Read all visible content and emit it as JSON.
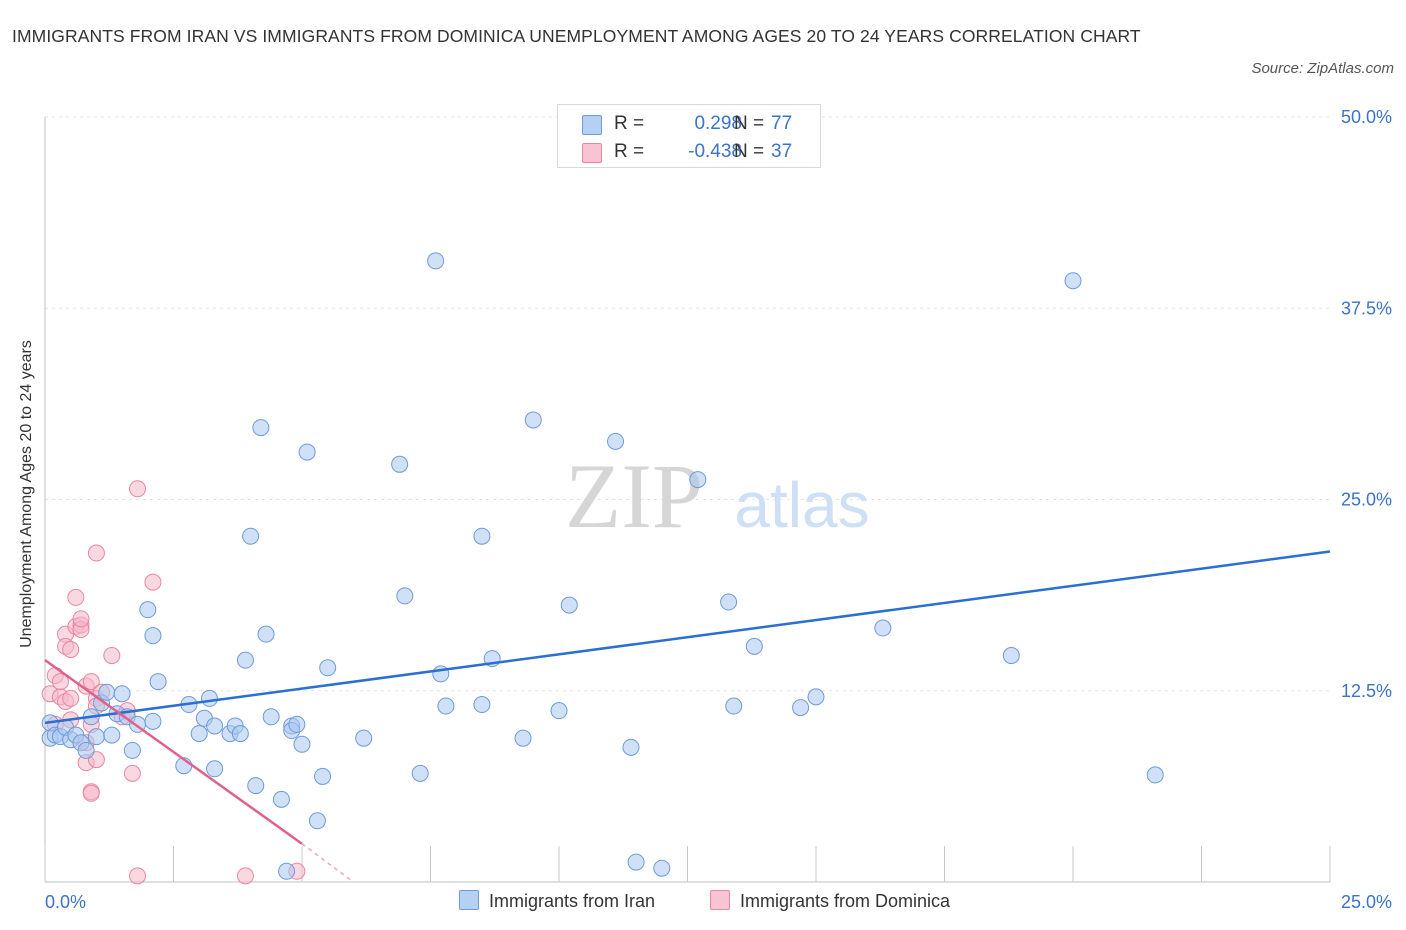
{
  "title": "IMMIGRANTS FROM IRAN VS IMMIGRANTS FROM DOMINICA UNEMPLOYMENT AMONG AGES 20 TO 24 YEARS CORRELATION CHART",
  "source": "Source: ZipAtlas.com",
  "watermark": {
    "zip": "ZIP",
    "atlas": "atlas"
  },
  "legend": {
    "r_label": "R =",
    "n_label": "N =",
    "rows": [
      {
        "r": "0.298",
        "n": "77"
      },
      {
        "r": "-0.438",
        "n": "37"
      }
    ]
  },
  "colors": {
    "iran_fill": "#a9c8f0",
    "iran_stroke": "#6d9bd8",
    "iran_line": "#2b6fcf",
    "dominica_fill": "#f5b8cb",
    "dominica_stroke": "#e9869f",
    "dominica_line": "#e0628c",
    "tick_text": "#3b73c8"
  },
  "chart_data": {
    "type": "scatter",
    "title": "IMMIGRANTS FROM IRAN VS IMMIGRANTS FROM DOMINICA UNEMPLOYMENT AMONG AGES 20 TO 24 YEARS CORRELATION CHART",
    "xlabel": "",
    "ylabel": "Unemployment Among Ages 20 to 24 years",
    "xlim": [
      0,
      25
    ],
    "ylim": [
      0,
      50
    ],
    "x_tick_labels": [
      "0.0%",
      "25.0%"
    ],
    "y_ticks": [
      12.5,
      25.0,
      37.5,
      50.0
    ],
    "y_tick_labels": [
      "12.5%",
      "25.0%",
      "37.5%",
      "50.0%"
    ],
    "grid": true,
    "legend_position": "top-center",
    "series": [
      {
        "name": "Immigrants from Iran",
        "R": 0.298,
        "N": 77,
        "trend": {
          "x": [
            0,
            25
          ],
          "y": [
            10.4,
            21.6
          ]
        },
        "points": [
          [
            0.1,
            9.4
          ],
          [
            0.1,
            10.4
          ],
          [
            0.2,
            9.6
          ],
          [
            0.3,
            9.5
          ],
          [
            0.4,
            10.1
          ],
          [
            0.5,
            9.3
          ],
          [
            0.6,
            9.6
          ],
          [
            0.7,
            9.1
          ],
          [
            0.8,
            8.6
          ],
          [
            0.9,
            10.8
          ],
          [
            1.0,
            9.5
          ],
          [
            1.1,
            11.7
          ],
          [
            1.2,
            12.4
          ],
          [
            1.3,
            9.6
          ],
          [
            1.4,
            11.0
          ],
          [
            1.5,
            12.3
          ],
          [
            1.6,
            10.8
          ],
          [
            1.7,
            8.6
          ],
          [
            1.8,
            10.3
          ],
          [
            2.1,
            10.5
          ],
          [
            2.0,
            17.8
          ],
          [
            2.1,
            16.1
          ],
          [
            2.2,
            13.1
          ],
          [
            2.7,
            7.6
          ],
          [
            2.8,
            11.6
          ],
          [
            3.0,
            9.7
          ],
          [
            3.1,
            10.7
          ],
          [
            3.2,
            12.0
          ],
          [
            3.3,
            10.2
          ],
          [
            3.3,
            7.4
          ],
          [
            3.6,
            9.7
          ],
          [
            3.7,
            10.2
          ],
          [
            3.8,
            9.7
          ],
          [
            3.9,
            14.5
          ],
          [
            4.0,
            22.6
          ],
          [
            4.1,
            6.3
          ],
          [
            4.2,
            29.7
          ],
          [
            4.3,
            16.2
          ],
          [
            4.4,
            10.8
          ],
          [
            4.6,
            5.4
          ],
          [
            4.7,
            0.7
          ],
          [
            4.8,
            10.2
          ],
          [
            4.8,
            9.9
          ],
          [
            4.9,
            10.3
          ],
          [
            5.0,
            9.0
          ],
          [
            5.1,
            28.1
          ],
          [
            5.4,
            6.9
          ],
          [
            5.3,
            4.0
          ],
          [
            5.5,
            14.0
          ],
          [
            6.2,
            9.4
          ],
          [
            6.9,
            27.3
          ],
          [
            7.0,
            18.7
          ],
          [
            7.3,
            7.1
          ],
          [
            7.6,
            40.6
          ],
          [
            7.7,
            13.6
          ],
          [
            7.8,
            11.5
          ],
          [
            8.7,
            14.6
          ],
          [
            8.5,
            11.6
          ],
          [
            8.5,
            22.6
          ],
          [
            9.3,
            9.4
          ],
          [
            9.5,
            30.2
          ],
          [
            10.0,
            11.2
          ],
          [
            10.2,
            18.1
          ],
          [
            11.1,
            28.8
          ],
          [
            11.4,
            8.8
          ],
          [
            11.5,
            1.3
          ],
          [
            12.0,
            0.9
          ],
          [
            12.7,
            26.3
          ],
          [
            13.3,
            18.3
          ],
          [
            13.4,
            11.5
          ],
          [
            13.8,
            15.4
          ],
          [
            14.7,
            11.4
          ],
          [
            15.0,
            12.1
          ],
          [
            16.3,
            16.6
          ],
          [
            18.8,
            14.8
          ],
          [
            20.0,
            39.3
          ],
          [
            21.6,
            7.0
          ]
        ]
      },
      {
        "name": "Immigrants from Dominica",
        "R": -0.438,
        "N": 37,
        "trend": {
          "x": [
            0,
            5.0
          ],
          "y": [
            14.5,
            2.5
          ]
        },
        "trend_dashed": {
          "x": [
            5.0,
            6.0
          ],
          "y": [
            2.5,
            0.0
          ]
        },
        "points": [
          [
            0.1,
            12.3
          ],
          [
            0.2,
            10.3
          ],
          [
            0.2,
            13.5
          ],
          [
            0.3,
            12.1
          ],
          [
            0.3,
            13.1
          ],
          [
            0.4,
            16.2
          ],
          [
            0.4,
            15.4
          ],
          [
            0.4,
            11.8
          ],
          [
            0.5,
            12.0
          ],
          [
            0.5,
            15.2
          ],
          [
            0.5,
            10.6
          ],
          [
            0.6,
            16.7
          ],
          [
            0.6,
            18.6
          ],
          [
            0.7,
            16.8
          ],
          [
            0.7,
            16.5
          ],
          [
            0.7,
            17.2
          ],
          [
            0.8,
            9.1
          ],
          [
            0.8,
            7.8
          ],
          [
            0.8,
            12.8
          ],
          [
            0.9,
            10.3
          ],
          [
            0.9,
            13.1
          ],
          [
            0.9,
            5.9
          ],
          [
            0.9,
            5.8
          ],
          [
            1.0,
            12.0
          ],
          [
            1.0,
            8.0
          ],
          [
            1.0,
            21.5
          ],
          [
            1.0,
            11.5
          ],
          [
            1.1,
            12.4
          ],
          [
            1.3,
            14.8
          ],
          [
            1.5,
            10.8
          ],
          [
            1.6,
            11.2
          ],
          [
            1.7,
            7.1
          ],
          [
            1.8,
            25.7
          ],
          [
            1.8,
            0.4
          ],
          [
            2.1,
            19.6
          ],
          [
            3.9,
            0.4
          ],
          [
            4.9,
            0.7
          ]
        ]
      }
    ]
  },
  "bottom_legend": [
    "Immigrants from Iran",
    "Immigrants from Dominica"
  ]
}
